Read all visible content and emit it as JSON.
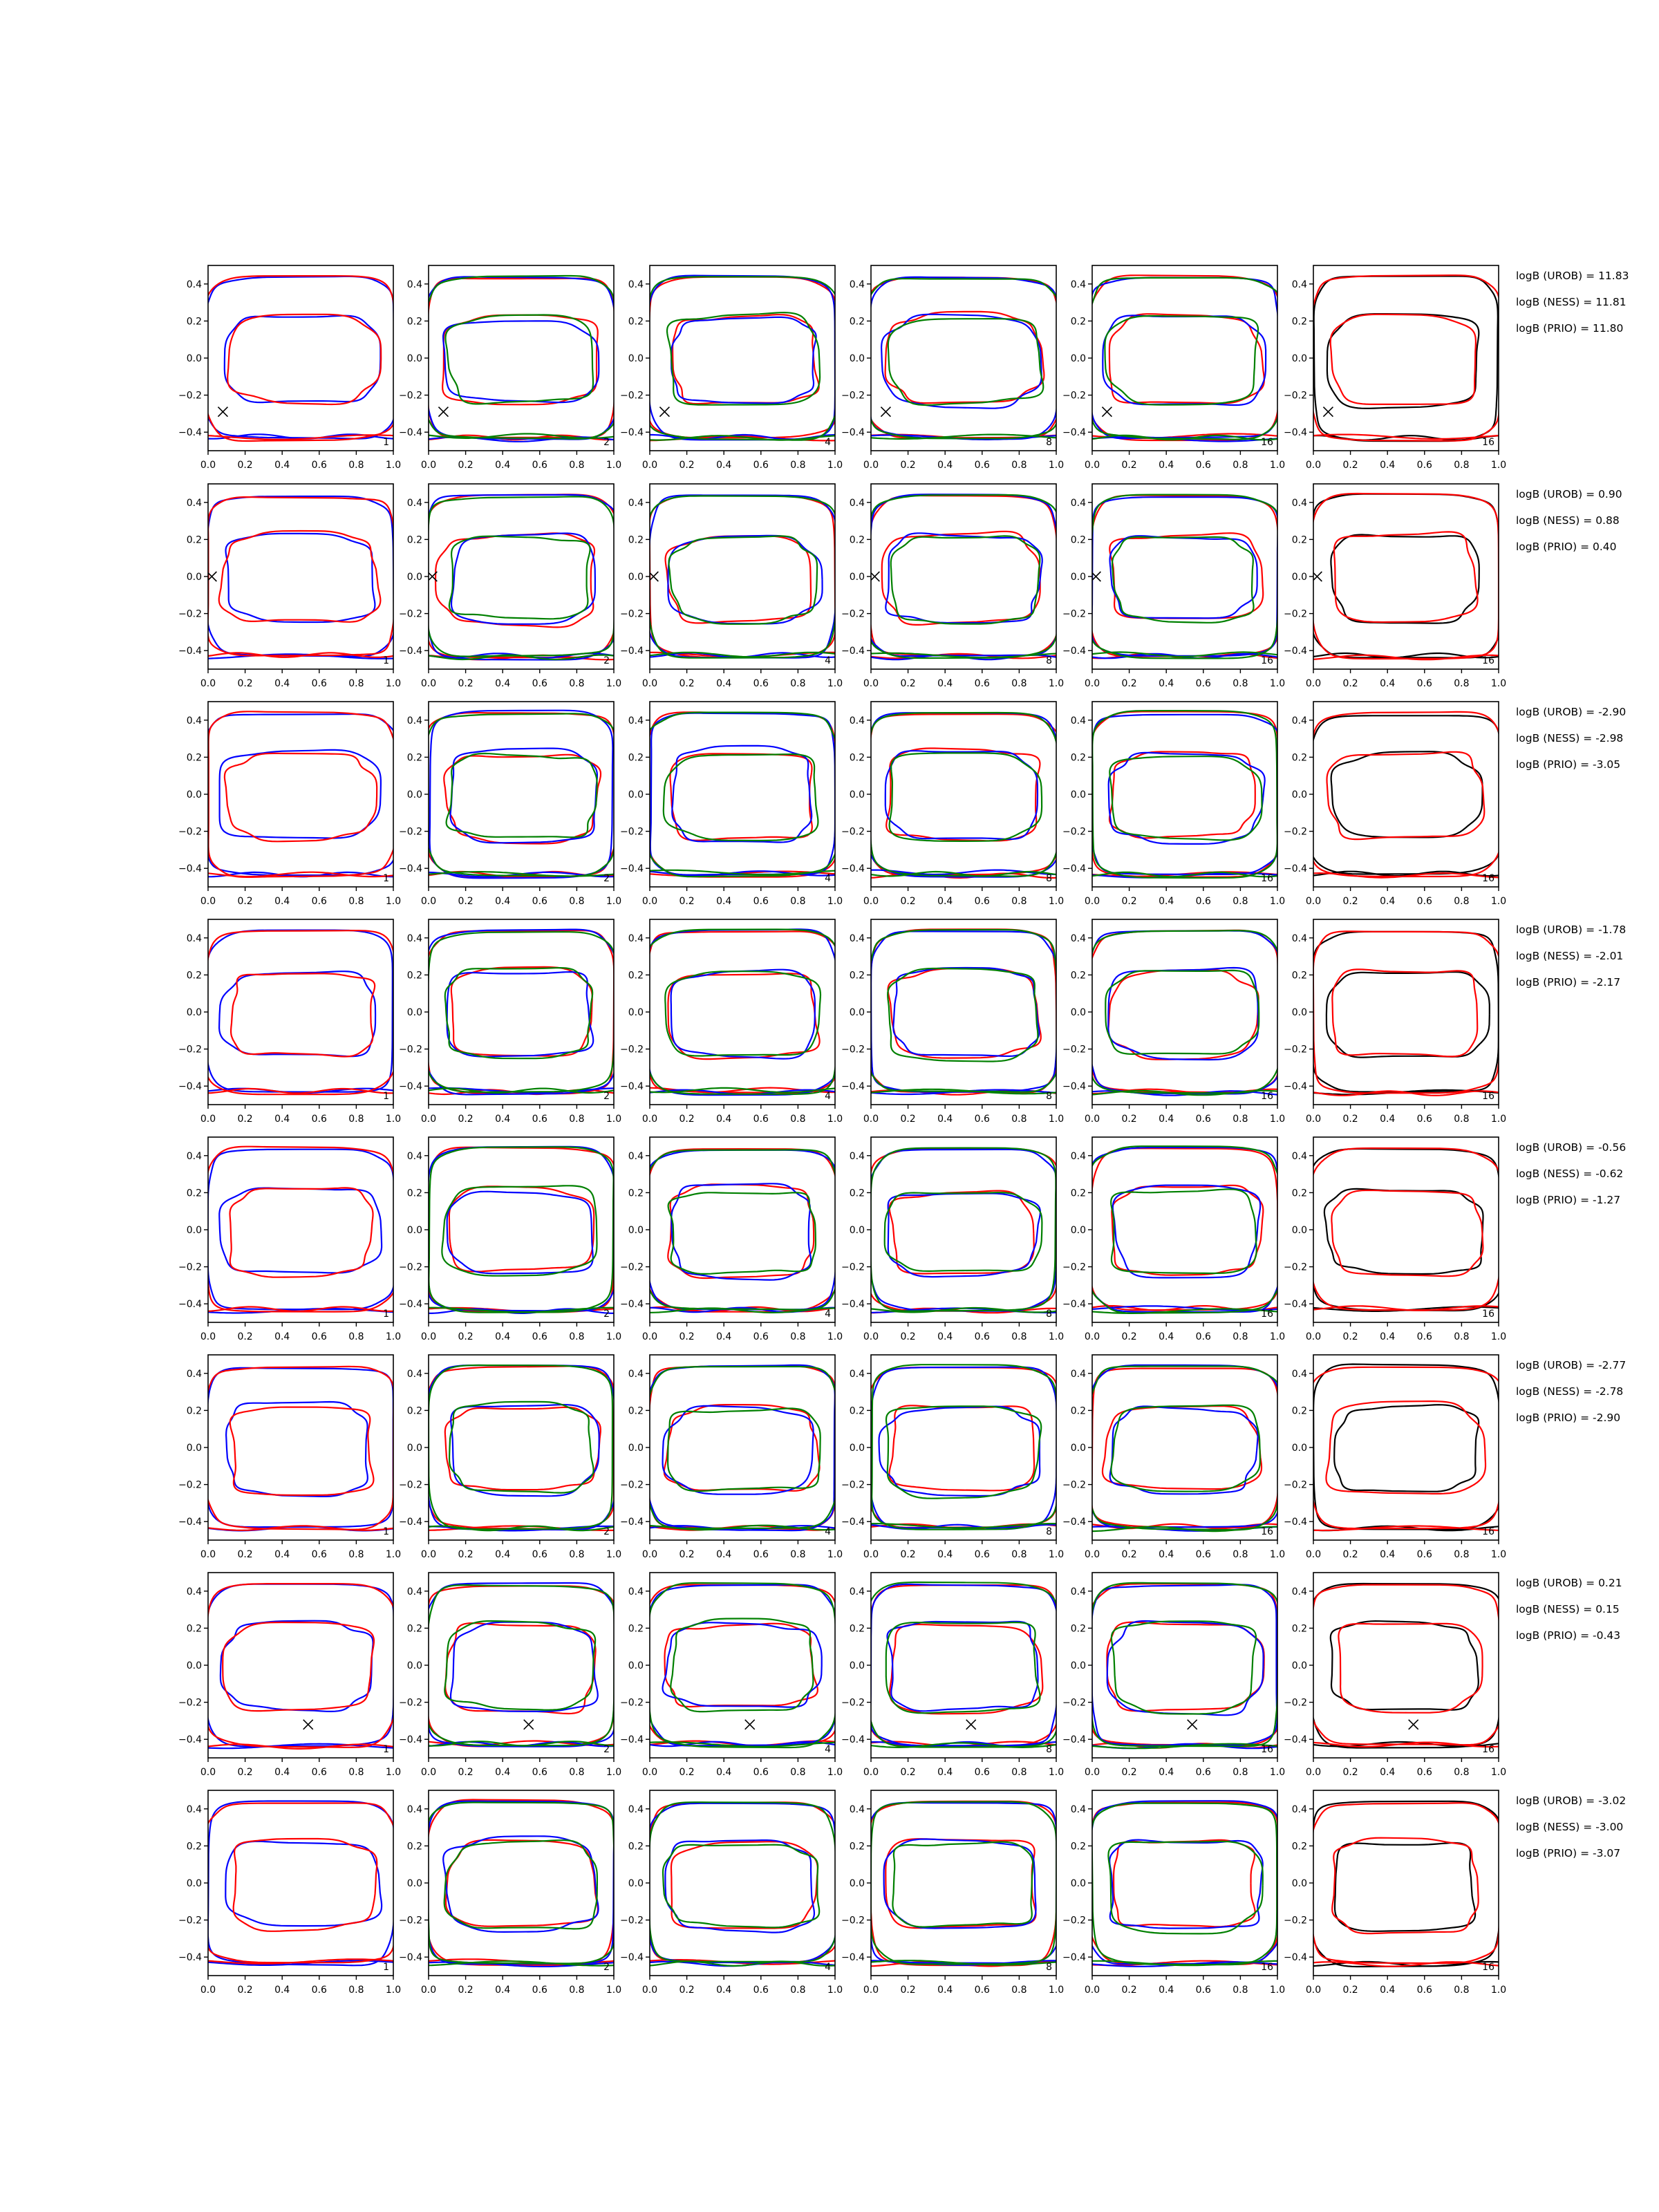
{
  "chart_data": {
    "type": "line",
    "grid": false,
    "xlim": [
      0,
      1
    ],
    "ylim": [
      -0.5,
      0.5
    ],
    "x_ticks": [
      "0.0",
      "0.2",
      "0.4",
      "0.6",
      "0.8",
      "1.0"
    ],
    "y_ticks": [
      "0.4",
      "0.2",
      "0.0",
      "−0.2",
      "−0.4"
    ],
    "panel_counts": [
      "1",
      "2",
      "4",
      "8",
      "16",
      "16"
    ],
    "colors": {
      "red": "#ff0000",
      "blue": "#0000ff",
      "green": "#008000",
      "black": "#000000"
    },
    "rows": [
      {
        "marker": {
          "x": 0.08,
          "y": -0.29
        },
        "log_bayes": [
          "logB (UROB) = 11.83",
          "logB (NESS) = 11.81",
          "logB (PRIO) = 11.80"
        ]
      },
      {
        "marker": {
          "x": 0.02,
          "y": 0.0
        },
        "log_bayes": [
          "logB (UROB) = 0.90",
          "logB (NESS) = 0.88",
          "logB (PRIO) = 0.40"
        ]
      },
      {
        "marker": null,
        "log_bayes": [
          "logB (UROB) = -2.90",
          "logB (NESS) = -2.98",
          "logB (PRIO) = -3.05"
        ]
      },
      {
        "marker": null,
        "log_bayes": [
          "logB (UROB) = -1.78",
          "logB (NESS) = -2.01",
          "logB (PRIO) = -2.17"
        ]
      },
      {
        "marker": null,
        "log_bayes": [
          "logB (UROB) = -0.56",
          "logB (NESS) = -0.62",
          "logB (PRIO) = -1.27"
        ]
      },
      {
        "marker": null,
        "log_bayes": [
          "logB (UROB) = -2.77",
          "logB (NESS) = -2.78",
          "logB (PRIO) = -2.90"
        ]
      },
      {
        "marker": {
          "x": 0.54,
          "y": -0.32
        },
        "log_bayes": [
          "logB (UROB) = 0.21",
          "logB (NESS) = 0.15",
          "logB (PRIO) = -0.43"
        ]
      },
      {
        "marker": null,
        "log_bayes": [
          "logB (UROB) = -3.02",
          "logB (NESS) = -3.00",
          "logB (PRIO) = -3.07"
        ]
      }
    ]
  }
}
